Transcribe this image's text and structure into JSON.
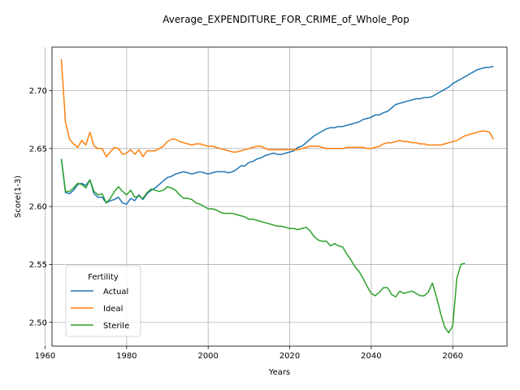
{
  "chart_data": {
    "type": "line",
    "title": "Average_EXPENDITURE_FOR_CRIME_of_Whole_Pop",
    "xlabel": "Years",
    "ylabel": "Score(1-3)",
    "xlim": [
      1961.7,
      2073.3
    ],
    "ylim": [
      2.4795,
      2.7375
    ],
    "xticks": [
      1960,
      1980,
      2000,
      2020,
      2040,
      2060
    ],
    "yticks": [
      2.5,
      2.55,
      2.6,
      2.65,
      2.7
    ],
    "xtick_labels": [
      "1960",
      "1980",
      "2000",
      "2020",
      "2040",
      "2060"
    ],
    "ytick_labels": [
      "2.50",
      "2.55",
      "2.60",
      "2.65",
      "2.70"
    ],
    "grid": true,
    "legend": {
      "title": "Fertility",
      "placement": "lower-left"
    },
    "x_start": 1964,
    "series": [
      {
        "name": "Actual",
        "color": "#1f77b4",
        "start_year": 1964,
        "values": [
          2.641,
          2.612,
          2.611,
          2.614,
          2.619,
          2.62,
          2.618,
          2.623,
          2.611,
          2.608,
          2.608,
          2.603,
          2.605,
          2.606,
          2.608,
          2.603,
          2.602,
          2.607,
          2.605,
          2.61,
          2.606,
          2.611,
          2.614,
          2.616,
          2.619,
          2.622,
          2.625,
          2.626,
          2.628,
          2.629,
          2.63,
          2.629,
          2.628,
          2.629,
          2.63,
          2.629,
          2.628,
          2.629,
          2.63,
          2.63,
          2.63,
          2.629,
          2.63,
          2.632,
          2.635,
          2.635,
          2.638,
          2.639,
          2.641,
          2.642,
          2.644,
          2.645,
          2.646,
          2.645,
          2.645,
          2.646,
          2.647,
          2.648,
          2.651,
          2.652,
          2.655,
          2.658,
          2.661,
          2.663,
          2.665,
          2.667,
          2.668,
          2.668,
          2.669,
          2.669,
          2.67,
          2.671,
          2.672,
          2.673,
          2.675,
          2.676,
          2.677,
          2.679,
          2.679,
          2.681,
          2.682,
          2.685,
          2.688,
          2.689,
          2.69,
          2.691,
          2.692,
          2.693,
          2.693,
          2.694,
          2.694,
          2.695,
          2.697,
          2.699,
          2.701,
          2.703,
          2.706,
          2.708,
          2.71,
          2.712,
          2.714,
          2.716,
          2.718,
          2.719,
          2.72,
          2.72,
          2.721
        ]
      },
      {
        "name": "Ideal",
        "color": "#ff7f0e",
        "start_year": 1964,
        "values": [
          2.727,
          2.673,
          2.658,
          2.654,
          2.651,
          2.657,
          2.653,
          2.664,
          2.652,
          2.65,
          2.65,
          2.643,
          2.647,
          2.651,
          2.65,
          2.645,
          2.646,
          2.649,
          2.645,
          2.649,
          2.643,
          2.648,
          2.648,
          2.648,
          2.65,
          2.652,
          2.656,
          2.658,
          2.658,
          2.656,
          2.655,
          2.654,
          2.653,
          2.654,
          2.654,
          2.653,
          2.652,
          2.652,
          2.651,
          2.65,
          2.649,
          2.648,
          2.647,
          2.647,
          2.648,
          2.649,
          2.65,
          2.651,
          2.652,
          2.652,
          2.65,
          2.649,
          2.649,
          2.649,
          2.649,
          2.649,
          2.649,
          2.649,
          2.649,
          2.65,
          2.651,
          2.652,
          2.652,
          2.652,
          2.651,
          2.65,
          2.65,
          2.65,
          2.65,
          2.65,
          2.651,
          2.651,
          2.651,
          2.651,
          2.651,
          2.65,
          2.65,
          2.651,
          2.652,
          2.654,
          2.655,
          2.655,
          2.656,
          2.657,
          2.656,
          2.656,
          2.655,
          2.655,
          2.654,
          2.654,
          2.653,
          2.653,
          2.653,
          2.653,
          2.654,
          2.655,
          2.656,
          2.657,
          2.659,
          2.661,
          2.662,
          2.663,
          2.664,
          2.665,
          2.665,
          2.664,
          2.658
        ]
      },
      {
        "name": "Sterile",
        "color": "#2ca02c",
        "start_year": 1964,
        "start_values_note": "",
        "values": [
          2.641,
          2.613,
          2.613,
          2.616,
          2.62,
          2.619,
          2.616,
          2.623,
          2.613,
          2.61,
          2.611,
          2.603,
          2.607,
          2.613,
          2.617,
          2.613,
          2.61,
          2.614,
          2.608,
          2.609,
          2.607,
          2.612,
          2.615,
          2.614,
          2.613,
          2.614,
          2.617,
          2.616,
          2.614,
          2.61,
          2.607,
          2.607,
          2.606,
          2.603,
          2.602,
          2.6,
          2.598,
          2.598,
          2.597,
          2.595,
          2.594,
          2.594,
          2.594,
          2.593,
          2.592,
          2.591,
          2.589,
          2.589,
          2.588,
          2.587,
          2.586,
          2.585,
          2.584,
          2.583,
          2.583,
          2.582,
          2.581,
          2.581,
          2.58,
          2.581,
          2.582,
          2.579,
          2.574,
          2.571,
          2.57,
          2.57,
          2.566,
          2.568,
          2.566,
          2.565,
          2.559,
          2.554,
          2.548,
          2.544,
          2.538,
          2.531,
          2.525,
          2.523,
          2.526,
          2.53,
          2.53,
          2.524,
          2.522,
          2.527,
          2.525,
          2.526,
          2.527,
          2.525,
          2.523,
          2.523,
          2.526,
          2.534,
          2.522,
          2.508,
          2.496,
          2.491,
          2.497,
          2.538,
          2.55,
          2.551
        ]
      }
    ]
  }
}
